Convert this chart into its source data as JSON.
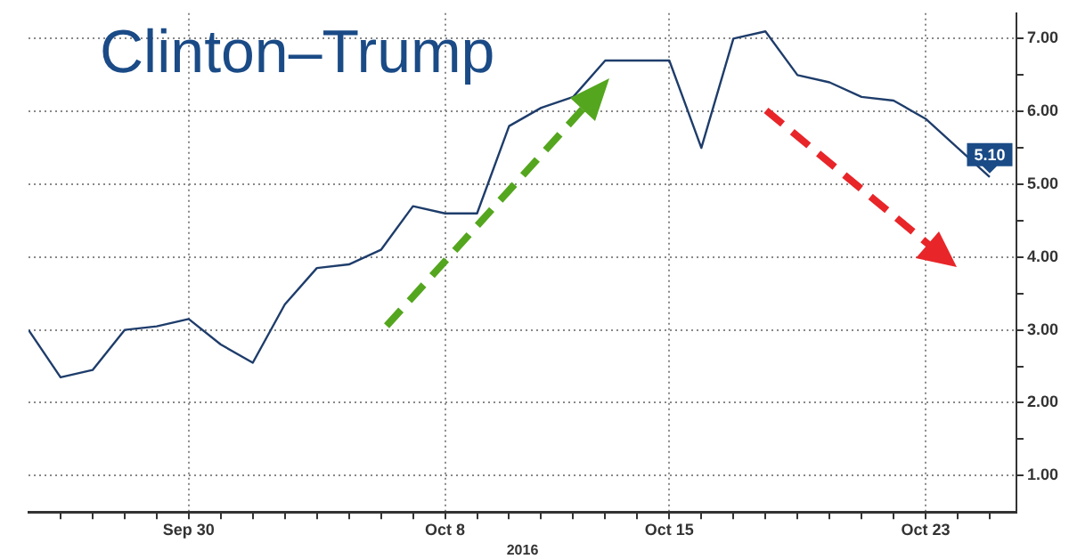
{
  "chart_data": {
    "type": "line",
    "title": "Clinton–Trump",
    "xlabel": "2016",
    "x": [
      "2016-09-25",
      "2016-09-26",
      "2016-09-27",
      "2016-09-28",
      "2016-09-29",
      "2016-09-30",
      "2016-10-01",
      "2016-10-02",
      "2016-10-03",
      "2016-10-04",
      "2016-10-05",
      "2016-10-06",
      "2016-10-07",
      "2016-10-08",
      "2016-10-09",
      "2016-10-10",
      "2016-10-11",
      "2016-10-12",
      "2016-10-13",
      "2016-10-14",
      "2016-10-15",
      "2016-10-16",
      "2016-10-17",
      "2016-10-18",
      "2016-10-19",
      "2016-10-20",
      "2016-10-21",
      "2016-10-22",
      "2016-10-23",
      "2016-10-24",
      "2016-10-25"
    ],
    "series": [
      {
        "color": "#1f3d6b",
        "values": [
          3.0,
          2.35,
          2.45,
          3.0,
          3.05,
          3.15,
          2.8,
          2.55,
          3.35,
          3.85,
          3.9,
          4.1,
          4.7,
          4.6,
          4.6,
          5.8,
          6.05,
          6.2,
          6.7,
          6.7,
          6.7,
          5.5,
          7.0,
          7.1,
          6.5,
          6.4,
          6.2,
          6.15,
          5.9,
          5.5,
          5.1
        ]
      }
    ],
    "xlim": [
      "2016-09-25",
      "2016-10-25T20:00"
    ],
    "xticks": [
      {
        "value": "2016-09-26",
        "label": null
      },
      {
        "value": "2016-09-27",
        "label": null
      },
      {
        "value": "2016-09-28",
        "label": null
      },
      {
        "value": "2016-09-29",
        "label": null
      },
      {
        "value": "2016-09-30",
        "label": "Sep 30"
      },
      {
        "value": "2016-10-01",
        "label": null
      },
      {
        "value": "2016-10-02",
        "label": null
      },
      {
        "value": "2016-10-03",
        "label": null
      },
      {
        "value": "2016-10-04",
        "label": null
      },
      {
        "value": "2016-10-05",
        "label": null
      },
      {
        "value": "2016-10-06",
        "label": null
      },
      {
        "value": "2016-10-07",
        "label": null
      },
      {
        "value": "2016-10-08",
        "label": "Oct 8"
      },
      {
        "value": "2016-10-09",
        "label": null
      },
      {
        "value": "2016-10-10",
        "label": null
      },
      {
        "value": "2016-10-11",
        "label": null
      },
      {
        "value": "2016-10-12",
        "label": null
      },
      {
        "value": "2016-10-13",
        "label": null
      },
      {
        "value": "2016-10-14",
        "label": null
      },
      {
        "value": "2016-10-15",
        "label": "Oct 15"
      },
      {
        "value": "2016-10-16",
        "label": null
      },
      {
        "value": "2016-10-17",
        "label": null
      },
      {
        "value": "2016-10-18",
        "label": null
      },
      {
        "value": "2016-10-19",
        "label": null
      },
      {
        "value": "2016-10-20",
        "label": null
      },
      {
        "value": "2016-10-21",
        "label": null
      },
      {
        "value": "2016-10-22",
        "label": null
      },
      {
        "value": "2016-10-23",
        "label": "Oct 23"
      },
      {
        "value": "2016-10-24",
        "label": null
      },
      {
        "value": "2016-10-25",
        "label": null
      }
    ],
    "ylim": [
      0.5,
      7.35
    ],
    "yticks": [
      {
        "value": 1,
        "label": "1.00"
      },
      {
        "value": 1.5,
        "label": null
      },
      {
        "value": 2,
        "label": "2.00"
      },
      {
        "value": 2.5,
        "label": null
      },
      {
        "value": 3,
        "label": "3.00"
      },
      {
        "value": 3.5,
        "label": null
      },
      {
        "value": 4,
        "label": "4.00"
      },
      {
        "value": 4.5,
        "label": null
      },
      {
        "value": 5,
        "label": "5.00"
      },
      {
        "value": 5.5,
        "label": null
      },
      {
        "value": 6,
        "label": "6.00"
      },
      {
        "value": 6.5,
        "label": null
      },
      {
        "value": 7,
        "label": "7.00"
      }
    ],
    "grid": true,
    "legend": false,
    "marker": "none",
    "line_style": "solid",
    "annotations": [
      {
        "text": "5.10",
        "x": "2016-10-25",
        "y": 5.1
      }
    ]
  }
}
